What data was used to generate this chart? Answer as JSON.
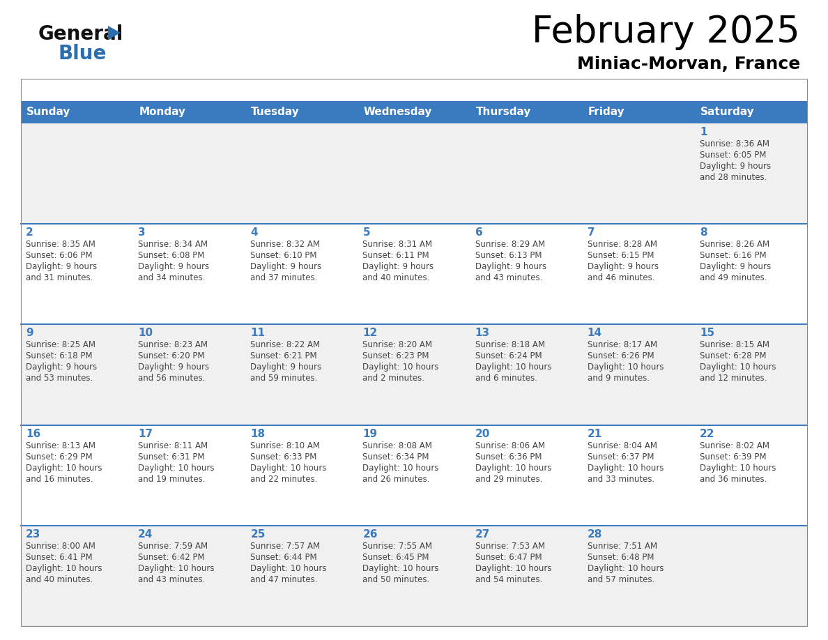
{
  "title": "February 2025",
  "subtitle": "Miniac-Morvan, France",
  "days_of_week": [
    "Sunday",
    "Monday",
    "Tuesday",
    "Wednesday",
    "Thursday",
    "Friday",
    "Saturday"
  ],
  "header_bg": "#3a7bbf",
  "header_text": "#ffffff",
  "row_bg_odd": "#f0f0f0",
  "row_bg_even": "#ffffff",
  "day_num_color": "#3a7bbf",
  "info_color": "#444444",
  "title_color": "#000000",
  "subtitle_color": "#000000",
  "logo_general_color": "#111111",
  "logo_blue_color": "#2a6eb0",
  "row_divider_color": "#3a7bbf",
  "weeks": [
    [
      {
        "day": null,
        "sunrise": null,
        "sunset": null,
        "daylight": null
      },
      {
        "day": null,
        "sunrise": null,
        "sunset": null,
        "daylight": null
      },
      {
        "day": null,
        "sunrise": null,
        "sunset": null,
        "daylight": null
      },
      {
        "day": null,
        "sunrise": null,
        "sunset": null,
        "daylight": null
      },
      {
        "day": null,
        "sunrise": null,
        "sunset": null,
        "daylight": null
      },
      {
        "day": null,
        "sunrise": null,
        "sunset": null,
        "daylight": null
      },
      {
        "day": 1,
        "sunrise": "8:36 AM",
        "sunset": "6:05 PM",
        "daylight": "9 hours\nand 28 minutes."
      }
    ],
    [
      {
        "day": 2,
        "sunrise": "8:35 AM",
        "sunset": "6:06 PM",
        "daylight": "9 hours\nand 31 minutes."
      },
      {
        "day": 3,
        "sunrise": "8:34 AM",
        "sunset": "6:08 PM",
        "daylight": "9 hours\nand 34 minutes."
      },
      {
        "day": 4,
        "sunrise": "8:32 AM",
        "sunset": "6:10 PM",
        "daylight": "9 hours\nand 37 minutes."
      },
      {
        "day": 5,
        "sunrise": "8:31 AM",
        "sunset": "6:11 PM",
        "daylight": "9 hours\nand 40 minutes."
      },
      {
        "day": 6,
        "sunrise": "8:29 AM",
        "sunset": "6:13 PM",
        "daylight": "9 hours\nand 43 minutes."
      },
      {
        "day": 7,
        "sunrise": "8:28 AM",
        "sunset": "6:15 PM",
        "daylight": "9 hours\nand 46 minutes."
      },
      {
        "day": 8,
        "sunrise": "8:26 AM",
        "sunset": "6:16 PM",
        "daylight": "9 hours\nand 49 minutes."
      }
    ],
    [
      {
        "day": 9,
        "sunrise": "8:25 AM",
        "sunset": "6:18 PM",
        "daylight": "9 hours\nand 53 minutes."
      },
      {
        "day": 10,
        "sunrise": "8:23 AM",
        "sunset": "6:20 PM",
        "daylight": "9 hours\nand 56 minutes."
      },
      {
        "day": 11,
        "sunrise": "8:22 AM",
        "sunset": "6:21 PM",
        "daylight": "9 hours\nand 59 minutes."
      },
      {
        "day": 12,
        "sunrise": "8:20 AM",
        "sunset": "6:23 PM",
        "daylight": "10 hours\nand 2 minutes."
      },
      {
        "day": 13,
        "sunrise": "8:18 AM",
        "sunset": "6:24 PM",
        "daylight": "10 hours\nand 6 minutes."
      },
      {
        "day": 14,
        "sunrise": "8:17 AM",
        "sunset": "6:26 PM",
        "daylight": "10 hours\nand 9 minutes."
      },
      {
        "day": 15,
        "sunrise": "8:15 AM",
        "sunset": "6:28 PM",
        "daylight": "10 hours\nand 12 minutes."
      }
    ],
    [
      {
        "day": 16,
        "sunrise": "8:13 AM",
        "sunset": "6:29 PM",
        "daylight": "10 hours\nand 16 minutes."
      },
      {
        "day": 17,
        "sunrise": "8:11 AM",
        "sunset": "6:31 PM",
        "daylight": "10 hours\nand 19 minutes."
      },
      {
        "day": 18,
        "sunrise": "8:10 AM",
        "sunset": "6:33 PM",
        "daylight": "10 hours\nand 22 minutes."
      },
      {
        "day": 19,
        "sunrise": "8:08 AM",
        "sunset": "6:34 PM",
        "daylight": "10 hours\nand 26 minutes."
      },
      {
        "day": 20,
        "sunrise": "8:06 AM",
        "sunset": "6:36 PM",
        "daylight": "10 hours\nand 29 minutes."
      },
      {
        "day": 21,
        "sunrise": "8:04 AM",
        "sunset": "6:37 PM",
        "daylight": "10 hours\nand 33 minutes."
      },
      {
        "day": 22,
        "sunrise": "8:02 AM",
        "sunset": "6:39 PM",
        "daylight": "10 hours\nand 36 minutes."
      }
    ],
    [
      {
        "day": 23,
        "sunrise": "8:00 AM",
        "sunset": "6:41 PM",
        "daylight": "10 hours\nand 40 minutes."
      },
      {
        "day": 24,
        "sunrise": "7:59 AM",
        "sunset": "6:42 PM",
        "daylight": "10 hours\nand 43 minutes."
      },
      {
        "day": 25,
        "sunrise": "7:57 AM",
        "sunset": "6:44 PM",
        "daylight": "10 hours\nand 47 minutes."
      },
      {
        "day": 26,
        "sunrise": "7:55 AM",
        "sunset": "6:45 PM",
        "daylight": "10 hours\nand 50 minutes."
      },
      {
        "day": 27,
        "sunrise": "7:53 AM",
        "sunset": "6:47 PM",
        "daylight": "10 hours\nand 54 minutes."
      },
      {
        "day": 28,
        "sunrise": "7:51 AM",
        "sunset": "6:48 PM",
        "daylight": "10 hours\nand 57 minutes."
      },
      {
        "day": null,
        "sunrise": null,
        "sunset": null,
        "daylight": null
      }
    ]
  ]
}
